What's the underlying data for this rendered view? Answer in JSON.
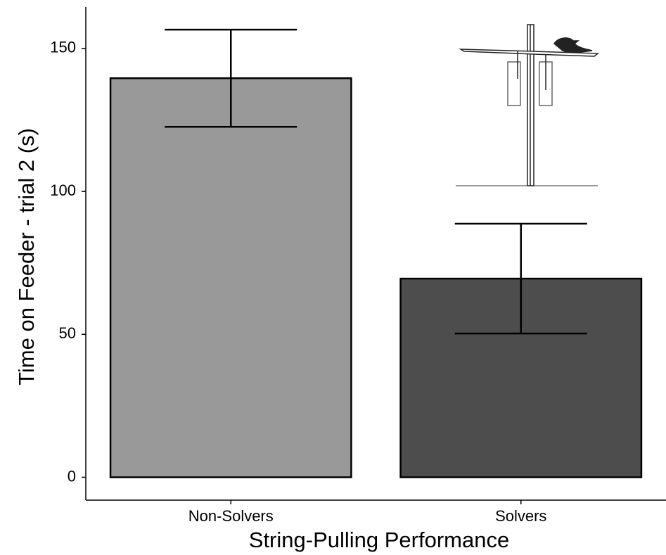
{
  "chart_data": {
    "type": "bar",
    "x_label": "String-Pulling Performance",
    "y_label": "Time on Feeder - trial 2 (s)",
    "categories": [
      "Non-Solvers",
      "Solvers"
    ],
    "values": [
      139.6,
      69.5
    ],
    "errors": [
      17,
      19.2
    ],
    "colors": [
      "#999999",
      "#4d4d4d"
    ],
    "ylim": [
      -8,
      164.5
    ],
    "yticks": [
      0,
      50,
      100,
      150
    ],
    "grid": false
  }
}
